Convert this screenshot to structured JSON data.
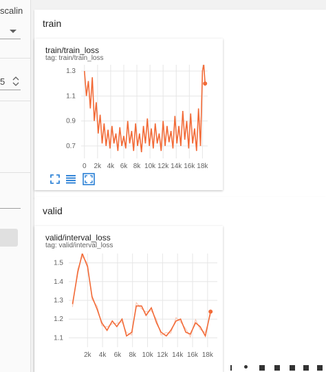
{
  "sidebar": {
    "scaling_label": "scalin",
    "stepper_value": "5",
    "stepper_icon": "updown-arrows-icon",
    "dropdown_icon": "caret-down-icon"
  },
  "sections": [
    {
      "title": "train",
      "card": {
        "title": "train/train_loss",
        "tag": "tag: train/train_loss",
        "tools": [
          "fullscreen-icon",
          "data-table-icon",
          "fit-domain-icon"
        ]
      }
    },
    {
      "title": "valid",
      "card": {
        "title": "valid/interval_loss",
        "tag": "tag: valid/interval_loss"
      }
    }
  ],
  "colors": {
    "series": "#f26b38",
    "series_faint": "#f9c2ad",
    "tool_icon": "#1976d2"
  },
  "chart_data": [
    {
      "type": "line",
      "title": "train/train_loss",
      "x_ticks": [
        "0",
        "2k",
        "4k",
        "6k",
        "8k",
        "10k",
        "12k",
        "14k",
        "16k",
        "18k"
      ],
      "y_ticks": [
        "0.7",
        "0.9",
        "1.1",
        "1.3"
      ],
      "xlim": [
        -500,
        18800
      ],
      "ylim": [
        0.6,
        1.35
      ],
      "grid": true,
      "series": [
        {
          "x": [
            0,
            300,
            600,
            900,
            1200,
            1500,
            1800,
            2100,
            2400,
            2700,
            3000,
            3300,
            3600,
            3900,
            4200,
            4500,
            4800,
            5100,
            5400,
            5700,
            6000,
            6300,
            6600,
            6900,
            7200,
            7500,
            7800,
            8100,
            8400,
            8700,
            9000,
            9300,
            9600,
            9900,
            10200,
            10500,
            10800,
            11100,
            11400,
            11700,
            12000,
            12300,
            12600,
            12900,
            13200,
            13500,
            13800,
            14100,
            14400,
            14700,
            15000,
            15300,
            15600,
            15900,
            16200,
            16500,
            16800,
            17100,
            17400,
            17700,
            18000,
            18200,
            18400
          ],
          "y": [
            1.3,
            1.1,
            1.22,
            1.0,
            1.25,
            0.9,
            1.05,
            0.8,
            0.95,
            0.72,
            0.88,
            0.7,
            0.83,
            0.68,
            0.86,
            0.72,
            0.8,
            0.66,
            0.85,
            0.7,
            0.78,
            0.68,
            0.9,
            0.72,
            0.82,
            0.66,
            0.88,
            0.7,
            0.8,
            0.65,
            0.86,
            0.72,
            0.92,
            0.7,
            0.84,
            0.68,
            0.88,
            0.72,
            0.8,
            0.66,
            0.9,
            0.7,
            0.86,
            0.73,
            0.82,
            0.68,
            0.94,
            0.72,
            0.86,
            0.7,
            0.98,
            0.75,
            0.9,
            0.68,
            0.96,
            0.72,
            0.84,
            0.66,
            1.0,
            0.7,
            1.3,
            1.35,
            1.2
          ]
        }
      ]
    },
    {
      "type": "line",
      "title": "valid/interval_loss",
      "x_ticks": [
        "2k",
        "4k",
        "6k",
        "8k",
        "10k",
        "12k",
        "14k",
        "16k",
        "18k"
      ],
      "y_ticks": [
        "1.1",
        "1.2",
        "1.3",
        "1.4",
        "1.5"
      ],
      "xlim": [
        -500,
        19300
      ],
      "ylim": [
        1.05,
        1.55
      ],
      "grid": true,
      "series": [
        {
          "x": [
            0,
            700,
            1300,
            2000,
            2600,
            3300,
            3900,
            4600,
            5300,
            5900,
            6600,
            7200,
            7900,
            8500,
            9200,
            9800,
            10500,
            11200,
            11800,
            12500,
            13100,
            13800,
            14400,
            15100,
            15700,
            16400,
            17000,
            17700,
            18400
          ],
          "y": [
            1.28,
            1.45,
            1.55,
            1.48,
            1.32,
            1.25,
            1.18,
            1.14,
            1.19,
            1.16,
            1.2,
            1.11,
            1.13,
            1.27,
            1.27,
            1.22,
            1.26,
            1.18,
            1.13,
            1.11,
            1.14,
            1.19,
            1.2,
            1.13,
            1.12,
            1.18,
            1.16,
            1.11,
            1.24
          ]
        }
      ]
    }
  ]
}
